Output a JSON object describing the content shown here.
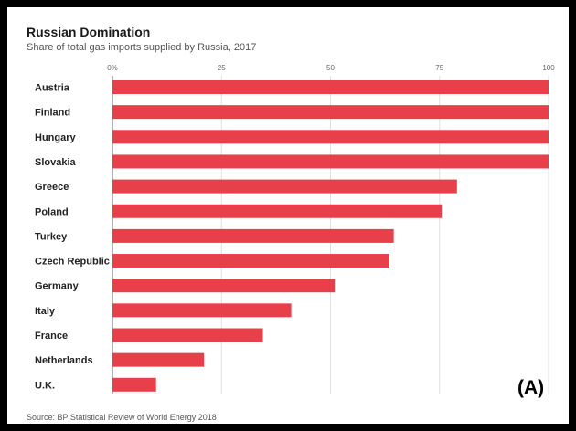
{
  "chart_data": {
    "type": "bar",
    "orientation": "horizontal",
    "title": "Russian Domination",
    "subtitle": "Share of total gas imports supplied by Russia, 2017",
    "source": "Source: BP Statistical Review of World Energy 2018",
    "xlim": [
      0,
      100
    ],
    "ticks": [
      0,
      25,
      50,
      75,
      100
    ],
    "tick_labels": [
      "0%",
      "25",
      "50",
      "75",
      "100"
    ],
    "grid": true,
    "bar_color": "#e8404a",
    "categories": [
      "Austria",
      "Finland",
      "Hungary",
      "Slovakia",
      "Greece",
      "Poland",
      "Turkey",
      "Czech Republic",
      "Germany",
      "Italy",
      "France",
      "Netherlands",
      "U.K."
    ],
    "values": [
      100,
      100,
      100,
      100,
      79,
      75.5,
      64.5,
      63.5,
      51,
      41,
      34.5,
      21,
      10
    ]
  },
  "annotation": {
    "label": "(A)"
  }
}
